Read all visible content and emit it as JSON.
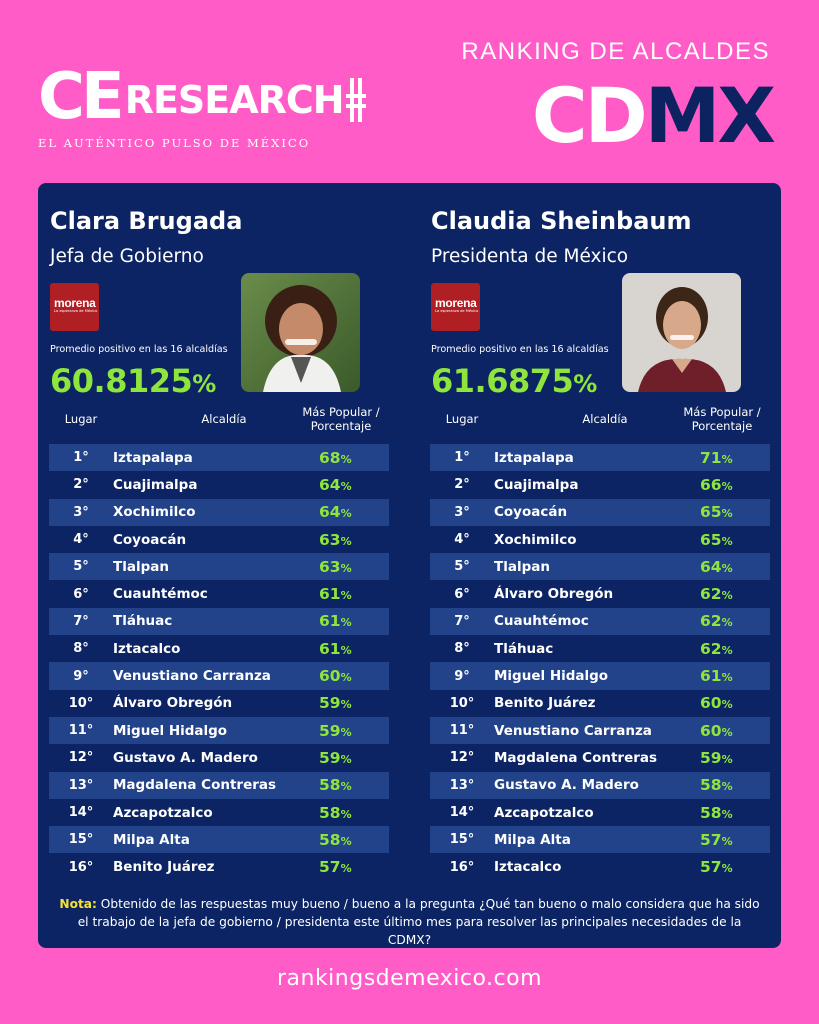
{
  "header": {
    "logo_main": "CE",
    "logo_research": "RESEARCH",
    "tagline": "EL AUTÉNTICO PULSO DE MÉXICO",
    "ranking_title": "RANKING DE ALCALDES",
    "cdmx_light": "CD",
    "cdmx_dark": "MX"
  },
  "columns": [
    {
      "name": "Clara Brugada",
      "role": "Jefa de Gobierno",
      "party": "morena",
      "party_sub": "La esperanza de México",
      "avg_label": "Promedio positivo en las 16 alcaldías",
      "avg_value": "60.8125",
      "headers": {
        "lugar": "Lugar",
        "alcaldia": "Alcaldía",
        "popular": "Más Popular / Porcentaje"
      },
      "rows": [
        {
          "pos": "1°",
          "alc": "Iztapalapa",
          "val": "68"
        },
        {
          "pos": "2°",
          "alc": "Cuajimalpa",
          "val": "64"
        },
        {
          "pos": "3°",
          "alc": "Xochimilco",
          "val": "64"
        },
        {
          "pos": "4°",
          "alc": "Coyoacán",
          "val": "63"
        },
        {
          "pos": "5°",
          "alc": "Tlalpan",
          "val": "63"
        },
        {
          "pos": "6°",
          "alc": "Cuauhtémoc",
          "val": "61"
        },
        {
          "pos": "7°",
          "alc": "Tláhuac",
          "val": "61"
        },
        {
          "pos": "8°",
          "alc": "Iztacalco",
          "val": "61"
        },
        {
          "pos": "9°",
          "alc": "Venustiano Carranza",
          "val": "60"
        },
        {
          "pos": "10°",
          "alc": "Álvaro Obregón",
          "val": "59"
        },
        {
          "pos": "11°",
          "alc": "Miguel Hidalgo",
          "val": "59"
        },
        {
          "pos": "12°",
          "alc": "Gustavo A. Madero",
          "val": "59"
        },
        {
          "pos": "13°",
          "alc": "Magdalena Contreras",
          "val": "58"
        },
        {
          "pos": "14°",
          "alc": "Azcapotzalco",
          "val": "58"
        },
        {
          "pos": "15°",
          "alc": "Milpa Alta",
          "val": "58"
        },
        {
          "pos": "16°",
          "alc": "Benito Juárez",
          "val": "57"
        }
      ]
    },
    {
      "name": "Claudia Sheinbaum",
      "role": "Presidenta de México",
      "party": "morena",
      "party_sub": "La esperanza de México",
      "avg_label": "Promedio positivo en las 16 alcaldías",
      "avg_value": "61.6875",
      "headers": {
        "lugar": "Lugar",
        "alcaldia": "Alcaldía",
        "popular": "Más Popular / Porcentaje"
      },
      "rows": [
        {
          "pos": "1°",
          "alc": "Iztapalapa",
          "val": "71"
        },
        {
          "pos": "2°",
          "alc": "Cuajimalpa",
          "val": "66"
        },
        {
          "pos": "3°",
          "alc": "Coyoacán",
          "val": "65"
        },
        {
          "pos": "4°",
          "alc": "Xochimilco",
          "val": "65"
        },
        {
          "pos": "5°",
          "alc": "Tlalpan",
          "val": "64"
        },
        {
          "pos": "6°",
          "alc": "Álvaro Obregón",
          "val": "62"
        },
        {
          "pos": "7°",
          "alc": "Cuauhtémoc",
          "val": "62"
        },
        {
          "pos": "8°",
          "alc": "Tláhuac",
          "val": "62"
        },
        {
          "pos": "9°",
          "alc": "Miguel Hidalgo",
          "val": "61"
        },
        {
          "pos": "10°",
          "alc": "Benito Juárez",
          "val": "60"
        },
        {
          "pos": "11°",
          "alc": "Venustiano Carranza",
          "val": "60"
        },
        {
          "pos": "12°",
          "alc": "Magdalena Contreras",
          "val": "59"
        },
        {
          "pos": "13°",
          "alc": "Gustavo A. Madero",
          "val": "58"
        },
        {
          "pos": "14°",
          "alc": "Azcapotzalco",
          "val": "58"
        },
        {
          "pos": "15°",
          "alc": "Milpa Alta",
          "val": "57"
        },
        {
          "pos": "16°",
          "alc": "Iztacalco",
          "val": "57"
        }
      ]
    }
  ],
  "percent_sign": "%",
  "note": {
    "label": "Nota:",
    "text": "Obtenido de las respuestas muy bueno / bueno a la pregunta ¿Qué tan bueno o malo considera que ha sido el trabajo de la jefa de gobierno / presidenta este último mes para resolver las principales necesidades de la CDMX?"
  },
  "footer": "rankingsdemexico.com",
  "colors": {
    "background": "#ff5cc8",
    "panel": "#0c2463",
    "row_alt": "#22428a",
    "accent_green": "#8ee63c",
    "note_label": "#f4e235",
    "party_red": "#b01f24"
  }
}
